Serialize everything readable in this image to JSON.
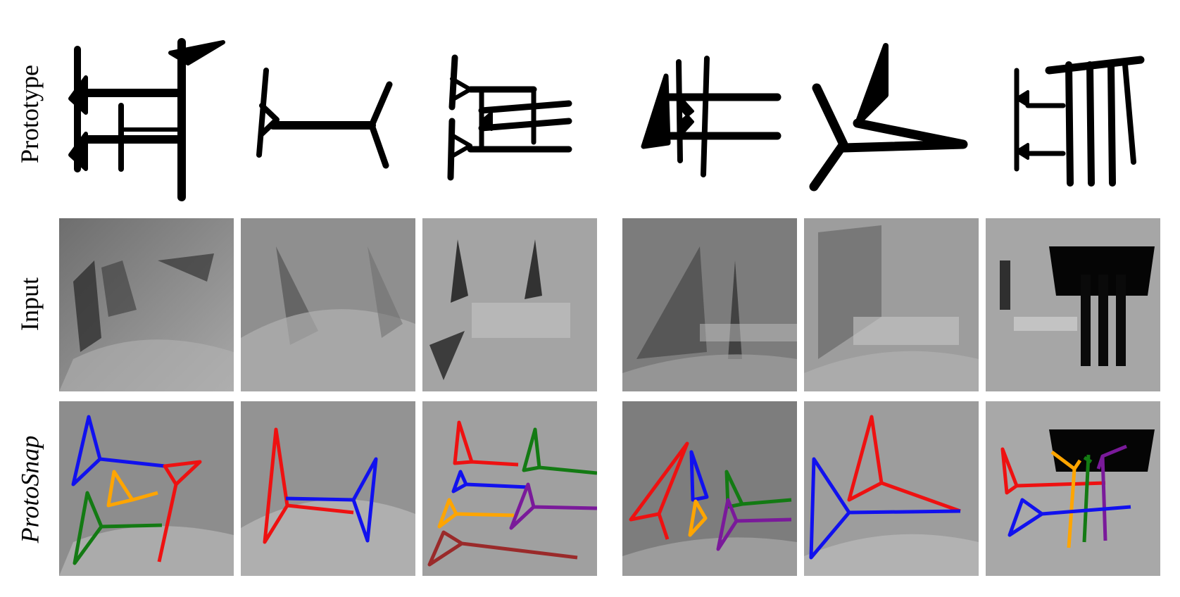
{
  "rows": {
    "prototype_label": "Prototype",
    "input_label": "Input",
    "protosnap_label": "ProtoSnap"
  },
  "overlay_colors": {
    "red": "#ee1111",
    "blue": "#1111ee",
    "green": "#137a13",
    "orange": "#ffa500",
    "purple": "#7a1a9a",
    "brown": "#9a2a2a"
  },
  "panels": [
    {
      "sign": "sign-1",
      "tone": "#8a8a8a"
    },
    {
      "sign": "sign-2",
      "tone": "#939393"
    },
    {
      "sign": "sign-3",
      "tone": "#9a9a9a"
    },
    {
      "sign": "sign-4",
      "tone": "#8f8f8f"
    },
    {
      "sign": "sign-5",
      "tone": "#9c9c9c"
    },
    {
      "sign": "sign-6",
      "tone": "#a3a3a3"
    }
  ]
}
